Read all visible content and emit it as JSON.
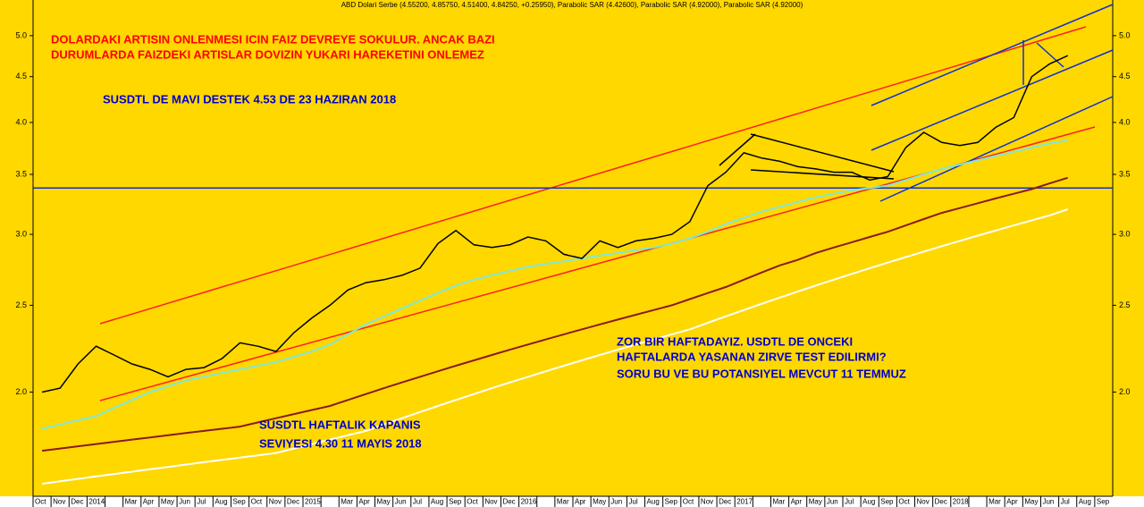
{
  "chart_data": {
    "type": "line",
    "header": "ABD Dolari Serbe (4.55200, 4.85750, 4.51400, 4.84250, +0.25950), Parabolic SAR (4.42600), Parabolic SAR (4.92000), Parabolic SAR (4.92000)",
    "annotations": [
      {
        "text": "DOLARDAKI ARTISIN ONLENMESI ICIN FAIZ DEVREYE SOKULUR. ANCAK BAZI",
        "color": "#ff0000"
      },
      {
        "text": "DURUMLARDA FAIZDEKI ARTISLAR DOVIZIN YUKARI HAREKETINI ONLEMEZ",
        "color": "#ff0000"
      },
      {
        "text": "SUSDTL DE MAVI DESTEK 4.53 DE 23 HAZIRAN 2018",
        "color": "#0000cc"
      },
      {
        "text": "ZOR BIR HAFTADAYIZ. USDTL DE ONCEKI",
        "color": "#0000cc"
      },
      {
        "text": "HAFTALARDA YASANAN ZIRVE TEST EDILIRMI?",
        "color": "#0000cc"
      },
      {
        "text": "SORU BU VE BU POTANSIYEL MEVCUT 11 TEMMUZ",
        "color": "#0000cc"
      },
      {
        "text": "SUSDTL HAFTALIK KAPANIS",
        "color": "#0000cc"
      },
      {
        "text": "SEVIYESI 4.30 11 MAYIS 2018",
        "color": "#0000cc"
      }
    ],
    "categories": [
      "Oct",
      "Nov",
      "Dec",
      "2014",
      null,
      "Mar",
      "Apr",
      "May",
      "Jun",
      "Jul",
      "Aug",
      "Sep",
      "Oct",
      "Nov",
      "Dec",
      "2015",
      null,
      "Mar",
      "Apr",
      "May",
      "Jun",
      "Jul",
      "Aug",
      "Sep",
      "Oct",
      "Nov",
      "Dec",
      "2016",
      null,
      "Mar",
      "Apr",
      "May",
      "Jun",
      "Jul",
      "Aug",
      "Sep",
      "Oct",
      "Nov",
      "Dec",
      "2017",
      null,
      "Mar",
      "Apr",
      "May",
      "Jun",
      "Jul",
      "Aug",
      "Sep",
      "Oct",
      "Nov",
      "Dec",
      "2018",
      null,
      "Mar",
      "Apr",
      "May",
      "Jun",
      "Jul",
      "Aug",
      "Sep"
    ],
    "series": [
      {
        "color": "#000000",
        "values": [
          2.0,
          2.02,
          2.15,
          2.25,
          2.2,
          2.15,
          2.12,
          2.08,
          2.12,
          2.13,
          2.18,
          2.27,
          2.25,
          2.22,
          2.33,
          2.42,
          2.5,
          2.6,
          2.65,
          2.67,
          2.7,
          2.75,
          2.93,
          3.03,
          2.92,
          2.9,
          2.92,
          2.98,
          2.95,
          2.85,
          2.82,
          2.95,
          2.9,
          2.95,
          2.97,
          3.0,
          3.1,
          3.4,
          3.52,
          3.7,
          3.65,
          3.62,
          3.57,
          3.55,
          3.52,
          3.52,
          3.45,
          3.48,
          3.75,
          3.9,
          3.8,
          3.77,
          3.8,
          3.95,
          4.05,
          4.5,
          4.65,
          4.75,
          null,
          null
        ]
      },
      {
        "color": "#7fe8d8",
        "values": [
          1.82,
          1.84,
          1.86,
          1.88,
          1.92,
          1.96,
          2.0,
          2.03,
          2.06,
          2.08,
          2.1,
          2.12,
          2.14,
          2.16,
          2.19,
          2.22,
          2.26,
          2.32,
          2.38,
          2.43,
          2.48,
          2.53,
          2.58,
          2.63,
          2.67,
          2.7,
          2.73,
          2.76,
          2.78,
          2.8,
          2.82,
          2.84,
          2.86,
          2.88,
          2.9,
          2.93,
          2.97,
          3.02,
          3.08,
          3.13,
          3.18,
          3.22,
          3.26,
          3.3,
          3.33,
          3.36,
          3.38,
          3.4,
          3.45,
          3.5,
          3.55,
          3.59,
          3.63,
          3.67,
          3.71,
          3.75,
          3.79,
          3.82,
          null,
          null
        ]
      },
      {
        "color": "#8b1a1a",
        "values": [
          1.72,
          1.73,
          1.74,
          1.75,
          1.76,
          1.77,
          1.78,
          1.79,
          1.8,
          1.81,
          1.82,
          1.83,
          1.85,
          1.87,
          1.89,
          1.91,
          1.93,
          1.96,
          1.99,
          2.02,
          2.05,
          2.08,
          2.11,
          2.14,
          2.17,
          2.2,
          2.23,
          2.26,
          2.29,
          2.32,
          2.35,
          2.38,
          2.41,
          2.44,
          2.47,
          2.5,
          2.54,
          2.58,
          2.62,
          2.67,
          2.72,
          2.77,
          2.81,
          2.86,
          2.9,
          2.94,
          2.98,
          3.02,
          3.07,
          3.12,
          3.17,
          3.21,
          3.25,
          3.29,
          3.33,
          3.37,
          3.42,
          3.47,
          null,
          null
        ]
      },
      {
        "color": "#ffffff",
        "values": [
          1.58,
          1.59,
          1.6,
          1.61,
          1.62,
          1.63,
          1.64,
          1.65,
          1.66,
          1.67,
          1.68,
          1.69,
          1.7,
          1.71,
          1.73,
          1.75,
          1.77,
          1.79,
          1.81,
          1.84,
          1.87,
          1.9,
          1.93,
          1.96,
          1.99,
          2.02,
          2.05,
          2.08,
          2.11,
          2.14,
          2.17,
          2.2,
          2.23,
          2.26,
          2.29,
          2.32,
          2.35,
          2.39,
          2.43,
          2.47,
          2.51,
          2.55,
          2.59,
          2.63,
          2.67,
          2.71,
          2.75,
          2.79,
          2.83,
          2.87,
          2.91,
          2.95,
          2.99,
          3.03,
          3.07,
          3.11,
          3.15,
          3.2,
          null,
          null
        ]
      }
    ],
    "support_level": 3.38,
    "log_scale": true,
    "ylim": [
      1.53,
      5.48
    ],
    "yticks": [
      {
        "value": 2,
        "label": "2.0"
      },
      {
        "value": 2.5,
        "label": "2.5"
      },
      {
        "value": 3,
        "label": "3.0"
      },
      {
        "value": 3.5,
        "label": "3.5"
      },
      {
        "value": 4,
        "label": "4.0"
      },
      {
        "value": 4.5,
        "label": "4.5"
      },
      {
        "value": 5,
        "label": "5.0"
      }
    ]
  }
}
